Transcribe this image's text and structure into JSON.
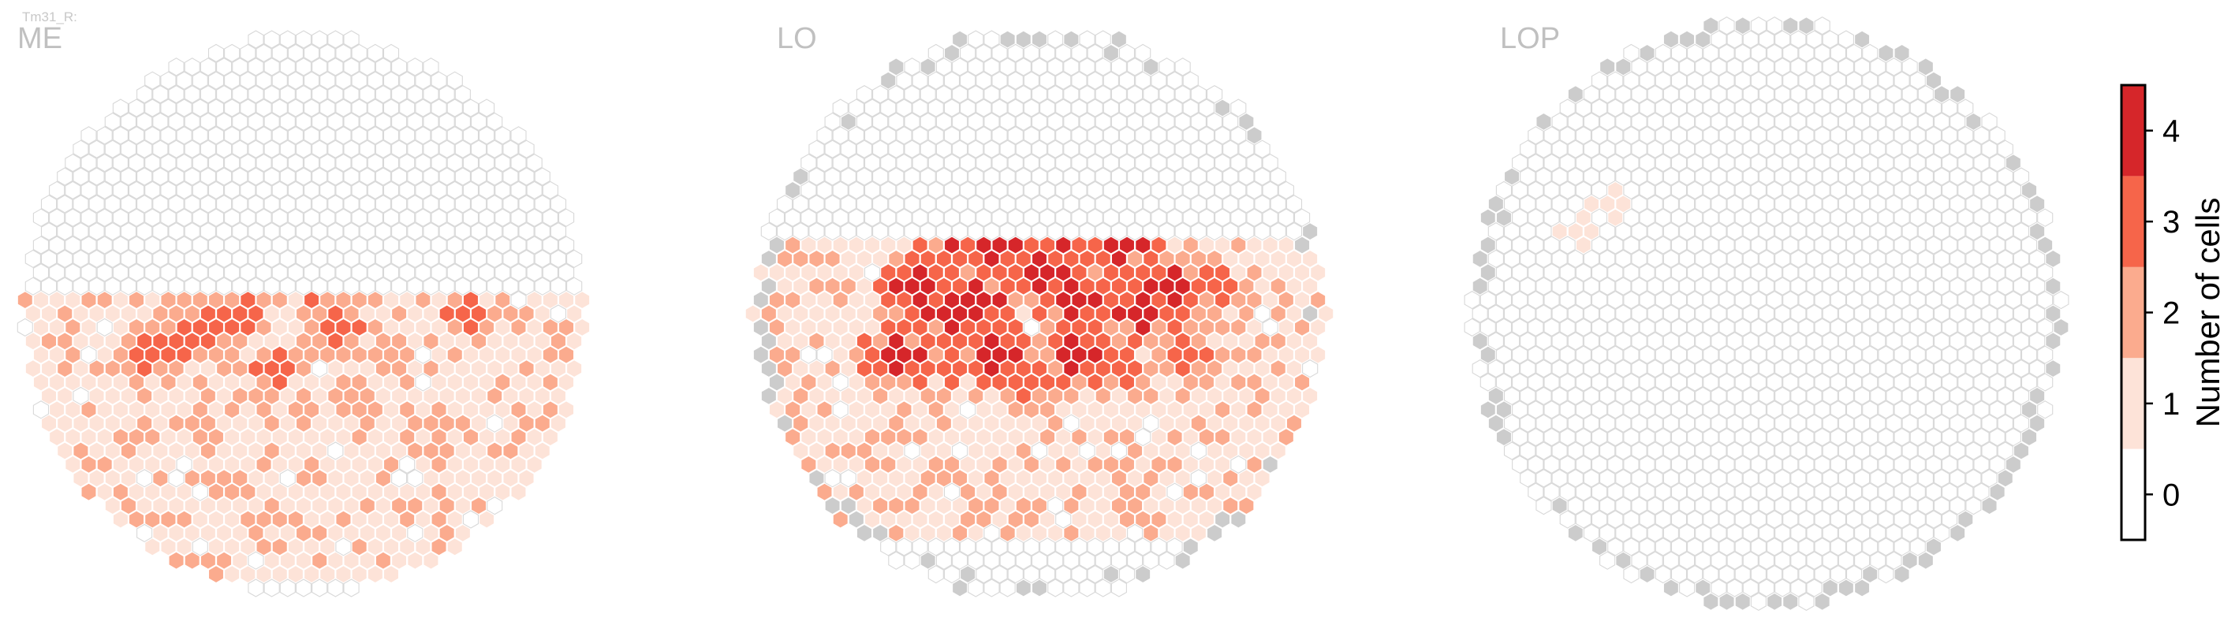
{
  "cell_type_label": "Tm31_R:",
  "chart_data": {
    "type": "heatmap",
    "layout": "hexagonal ommatidia grid",
    "panels": [
      {
        "name": "ME",
        "hotspots": [
          [
            -5,
            -5,
            3
          ],
          [
            -3,
            -7,
            3
          ],
          [
            -1,
            -8,
            3
          ],
          [
            1,
            -6,
            3
          ],
          [
            3,
            -8,
            3
          ],
          [
            6,
            -7,
            3
          ],
          [
            8,
            -3,
            3
          ],
          [
            -8,
            2,
            3
          ],
          [
            -6,
            1,
            3
          ],
          [
            -4,
            0,
            3
          ],
          [
            0,
            -2,
            3
          ],
          [
            2,
            1,
            3
          ],
          [
            -10,
            3,
            3
          ],
          [
            10,
            0,
            3
          ],
          [
            -2,
            4,
            3
          ],
          [
            5,
            3,
            2
          ],
          [
            -7,
            8,
            2
          ],
          [
            3,
            6,
            2
          ],
          [
            8,
            8,
            2
          ]
        ]
      },
      {
        "name": "LO",
        "hotspots": [
          [
            -6,
            -6,
            4
          ],
          [
            -4,
            -8,
            4
          ],
          [
            -3,
            -5,
            4
          ],
          [
            -1,
            -4,
            3
          ],
          [
            1,
            -6,
            4
          ],
          [
            3,
            -7,
            4
          ],
          [
            5,
            -5,
            4
          ],
          [
            7,
            -6,
            3
          ],
          [
            -8,
            -2,
            4
          ],
          [
            -6,
            0,
            4
          ],
          [
            -4,
            -1,
            4
          ],
          [
            0,
            -3,
            4
          ],
          [
            2,
            -1,
            4
          ],
          [
            4,
            -2,
            3
          ],
          [
            6,
            0,
            4
          ],
          [
            8,
            -2,
            4
          ],
          [
            -9,
            3,
            4
          ],
          [
            -6,
            4,
            3
          ],
          [
            -3,
            3,
            4
          ],
          [
            -1,
            5,
            3
          ],
          [
            2,
            3,
            4
          ],
          [
            5,
            4,
            3
          ],
          [
            9,
            3,
            3
          ],
          [
            11,
            -2,
            3
          ]
        ]
      },
      {
        "name": "LOP",
        "hotspots": [
          [
            -10,
            -8,
            1
          ],
          [
            -12,
            -6,
            1
          ]
        ]
      }
    ],
    "colorbar": {
      "label": "Number of cells",
      "ticks": [
        0,
        1,
        2,
        3,
        4
      ],
      "colors": [
        "#ffffff",
        "#fde3d8",
        "#fbab8e",
        "#f6654a",
        "#d6262a"
      ],
      "range": [
        -0.5,
        4.5
      ]
    },
    "neutral_color": "#cccccc",
    "edge_color": "#d8d8d8"
  }
}
